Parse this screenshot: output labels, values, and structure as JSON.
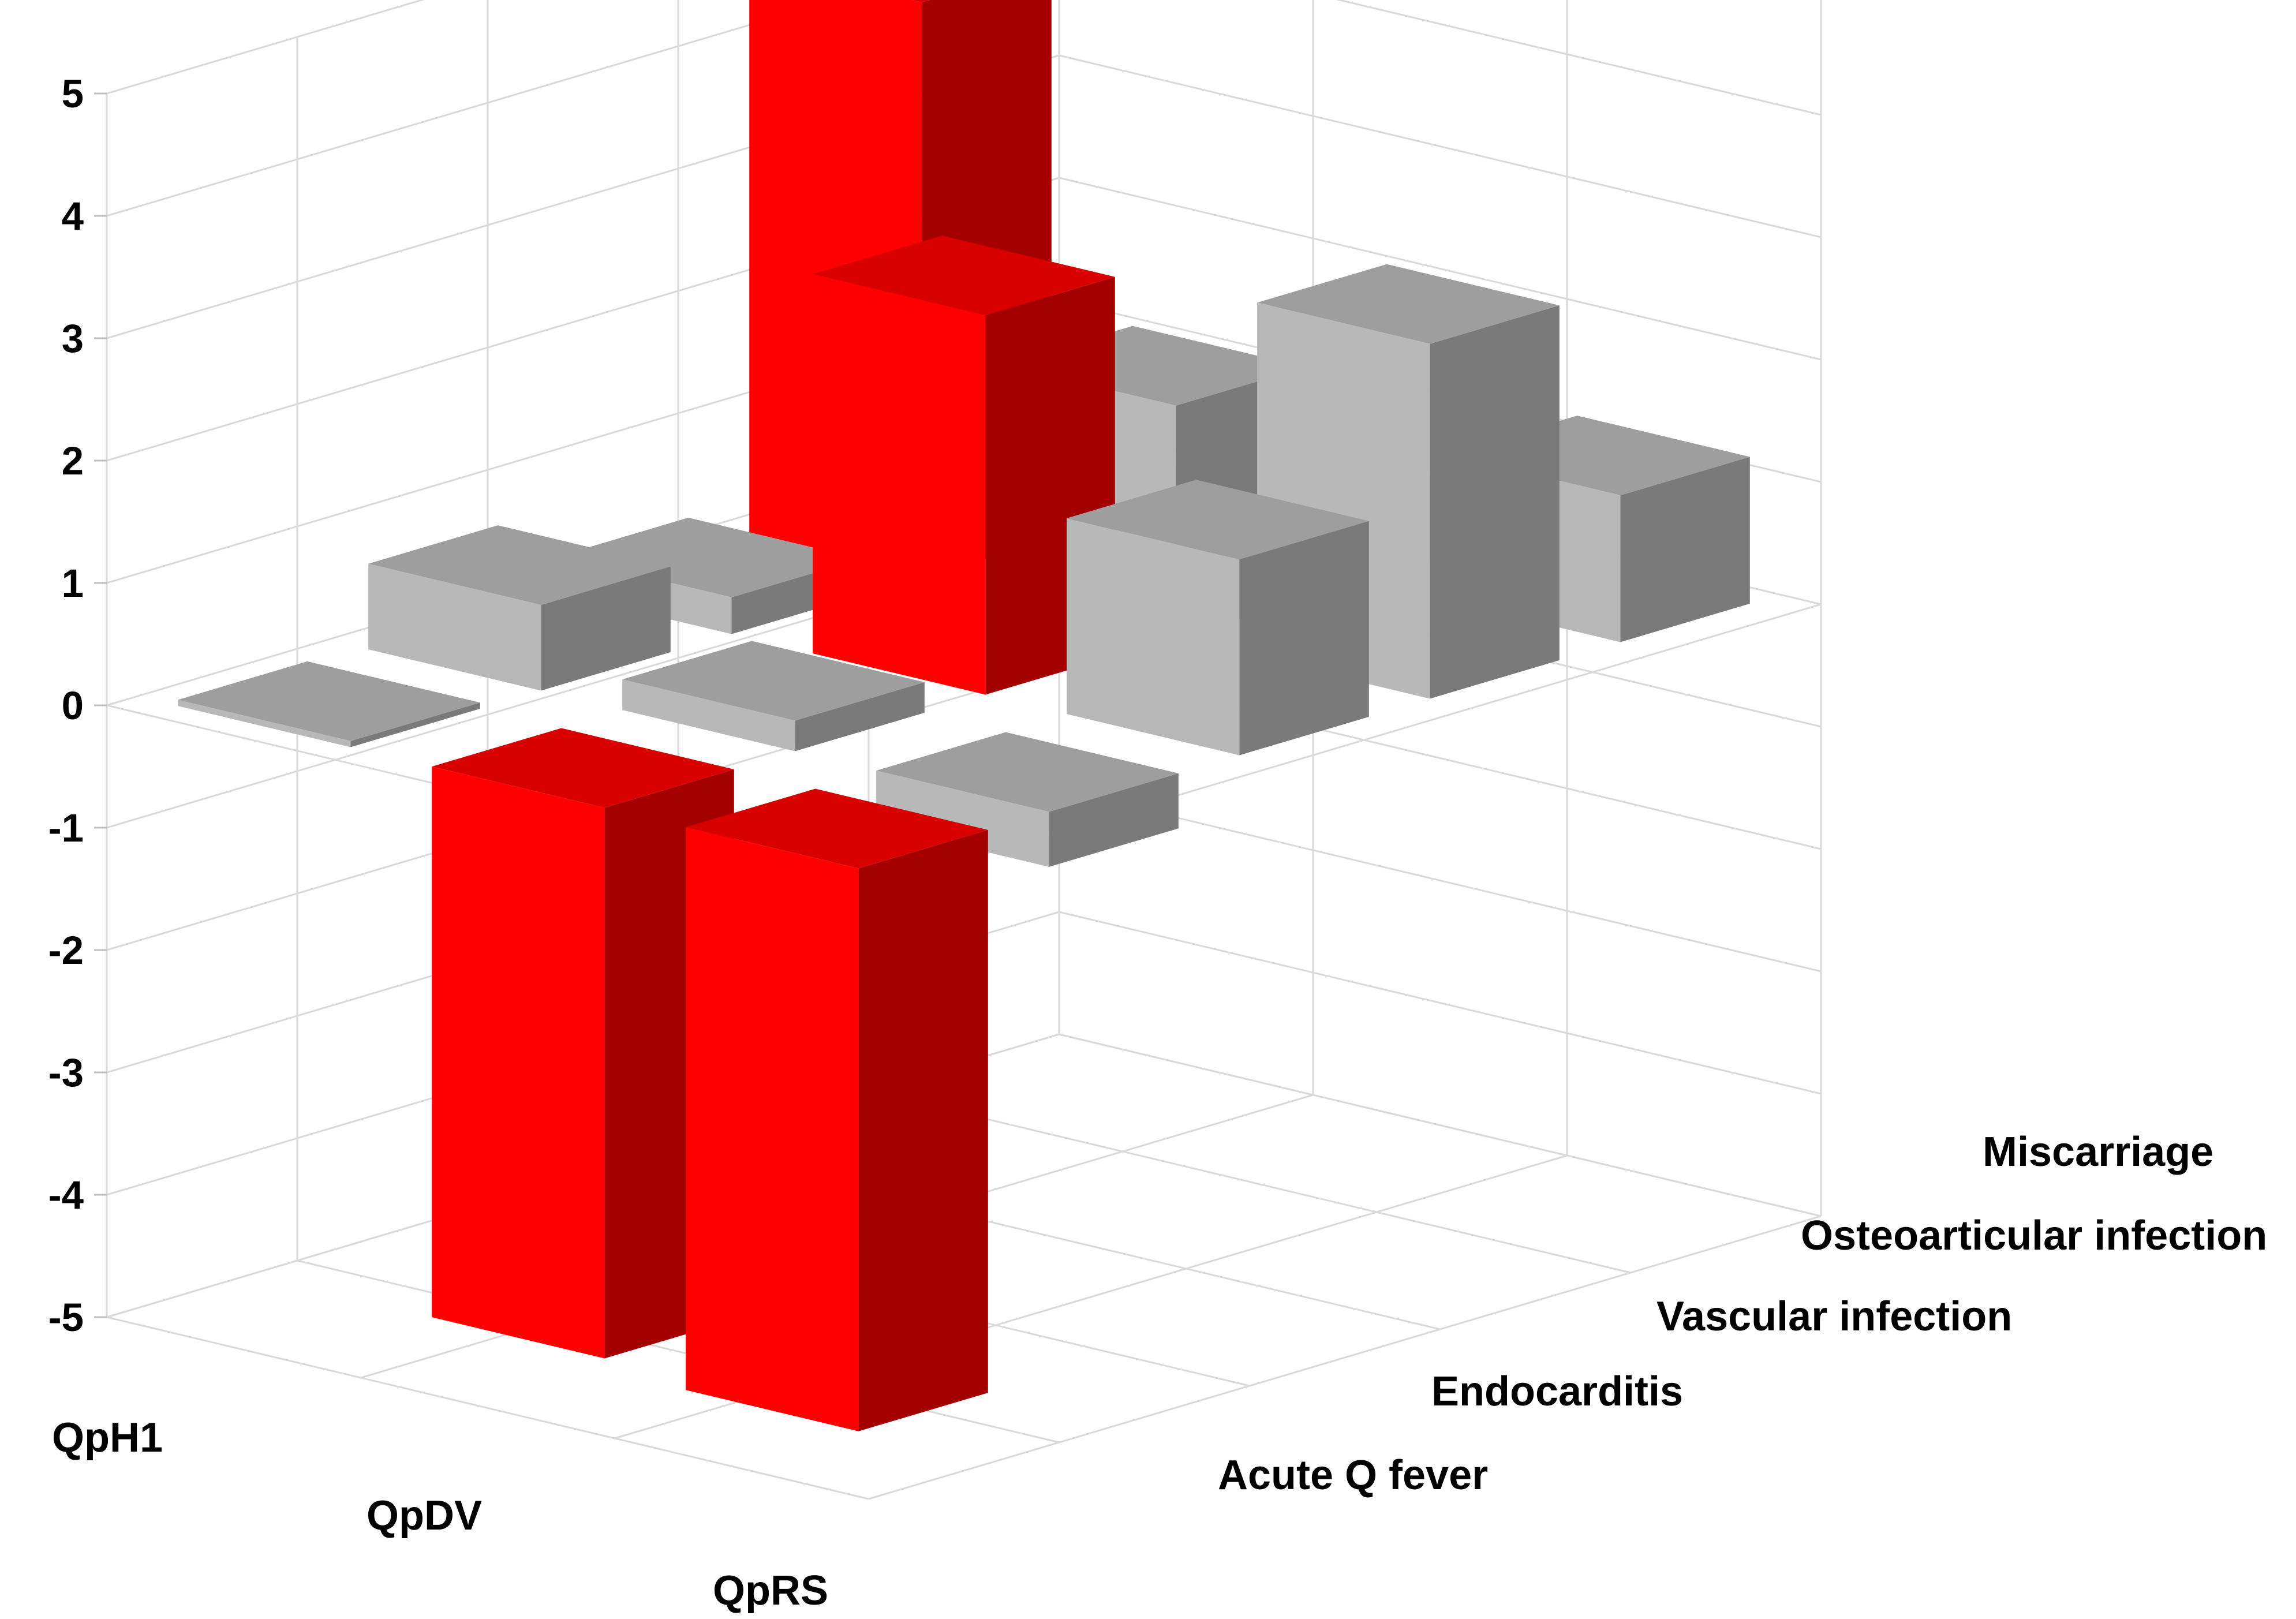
{
  "chart_data": {
    "type": "bar3d",
    "title": "",
    "yaxis": {
      "ticks": [
        "5",
        "4",
        "3",
        "2",
        "1",
        "0",
        "-1",
        "-2",
        "-3",
        "-4",
        "-5"
      ],
      "ylim": [
        -5,
        5
      ]
    },
    "columns": [
      "QpH1",
      "QpDV",
      "QpRS"
    ],
    "rows": [
      "Acute Q fever",
      "Endocarditis",
      "Vascular infection",
      "Osteoarticular infection",
      "Miscarriage"
    ],
    "values": {
      "QpH1": [
        0.05,
        0.7,
        0.3,
        4.7,
        0.0
      ],
      "QpDV": [
        -4.5,
        0.25,
        3.1,
        1.9,
        0.45
      ],
      "QpRS": [
        -4.6,
        -0.45,
        1.6,
        2.9,
        1.2
      ]
    },
    "colors": {
      "highlight_front": "#ff0000",
      "highlight_side": "#a40000",
      "highlight_top": "#d90000",
      "neutral_front": "#b8b8b8",
      "neutral_side": "#7a7a7a",
      "neutral_top": "#9e9e9e",
      "grid": "#d9d9d9"
    },
    "highlighted": [
      {
        "column": "QpH1",
        "row": "Osteoarticular infection"
      },
      {
        "column": "QpDV",
        "row": "Acute Q fever"
      },
      {
        "column": "QpDV",
        "row": "Vascular infection"
      },
      {
        "column": "QpRS",
        "row": "Acute Q fever"
      }
    ]
  }
}
